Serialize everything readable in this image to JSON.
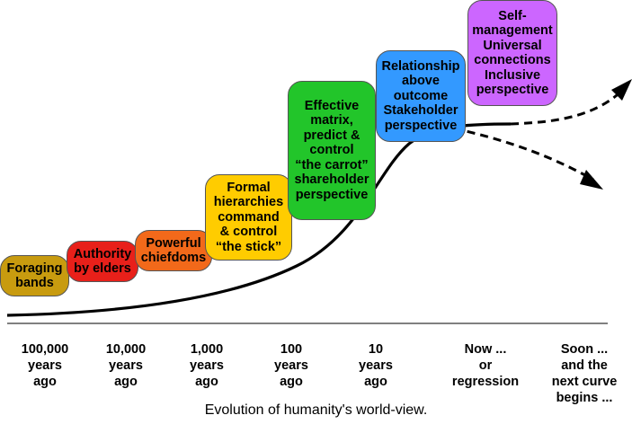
{
  "stages": [
    {
      "text": "Foraging\nbands",
      "color": "#c89b0f"
    },
    {
      "text": "Authority\nby elders",
      "color": "#e8201a"
    },
    {
      "text": "Powerful\nchiefdoms",
      "color": "#f2691a"
    },
    {
      "text": "Formal\nhierarchies\ncommand\n& control\n“the stick”",
      "color": "#ffcc00"
    },
    {
      "text": "Effective\nmatrix,\npredict &\ncontrol\n“the carrot”\nshareholder\nperspective",
      "color": "#22c52a"
    },
    {
      "text": "Relationship\nabove\noutcome\nStakeholder\nperspective",
      "color": "#3399ff"
    },
    {
      "text": "Self-\nmanagement\nUniversal\nconnections\nInclusive\nperspective",
      "color": "#cc66ff"
    }
  ],
  "eras": [
    "100,000\nyears\nago",
    "10,000\nyears\nago",
    "1,000\nyears\nago",
    "100\nyears\nago",
    "10\nyears\nago",
    "Now ...\nor\nregression",
    "Soon  ...\nand the\nnext curve\nbegins ..."
  ],
  "caption": "Evolution of humanity's world-view."
}
